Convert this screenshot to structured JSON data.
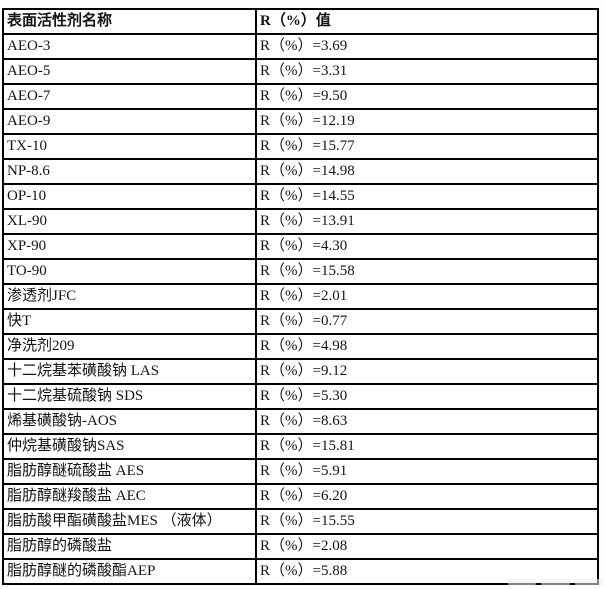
{
  "table": {
    "headers": {
      "name": "表面活性剂名称",
      "value": "R（%）值"
    },
    "rows": [
      {
        "name": "AEO-3",
        "value": "R（%）=3.69"
      },
      {
        "name": "AEO-5",
        "value": "R（%）=3.31"
      },
      {
        "name": "AEO-7",
        "value": "R（%）=9.50"
      },
      {
        "name": "AEO-9",
        "value": "R（%）=12.19"
      },
      {
        "name": "TX-10",
        "value": "R（%）=15.77"
      },
      {
        "name": "NP-8.6",
        "value": "R（%）=14.98"
      },
      {
        "name": "OP-10",
        "value": "R（%）=14.55"
      },
      {
        "name": "XL-90",
        "value": "R（%）=13.91"
      },
      {
        "name": "XP-90",
        "value": "R（%）=4.30"
      },
      {
        "name": "TO-90",
        "value": "R（%）=15.58"
      },
      {
        "name": "渗透剂JFC",
        "value": "R（%）=2.01"
      },
      {
        "name": "快T",
        "value": "R（%）=0.77"
      },
      {
        "name": "净洗剂209",
        "value": "R（%）=4.98"
      },
      {
        "name": "十二烷基苯磺酸钠 LAS",
        "value": "R（%）=9.12"
      },
      {
        "name": "十二烷基硫酸钠 SDS",
        "value": "R（%）=5.30"
      },
      {
        "name": "烯基磺酸钠-AOS",
        "value": "R（%）=8.63"
      },
      {
        "name": "仲烷基磺酸钠SAS",
        "value": "R（%）=15.81"
      },
      {
        "name": "脂肪醇醚硫酸盐 AES",
        "value": "R（%）=5.91"
      },
      {
        "name": "脂肪醇醚羧酸盐 AEC",
        "value": "R（%）=6.20"
      },
      {
        "name": "脂肪酸甲酯磺酸盐MES （液体）",
        "value": "R（%）=15.55"
      },
      {
        "name": "脂肪醇的磷酸盐",
        "value": "R（%）=2.08"
      },
      {
        "name": "脂肪醇醚的磷酸酯AEP",
        "value": "R（%）=5.88"
      }
    ]
  },
  "colors": {
    "border": "#000000",
    "text": "#141414",
    "background": "#ffffff"
  }
}
